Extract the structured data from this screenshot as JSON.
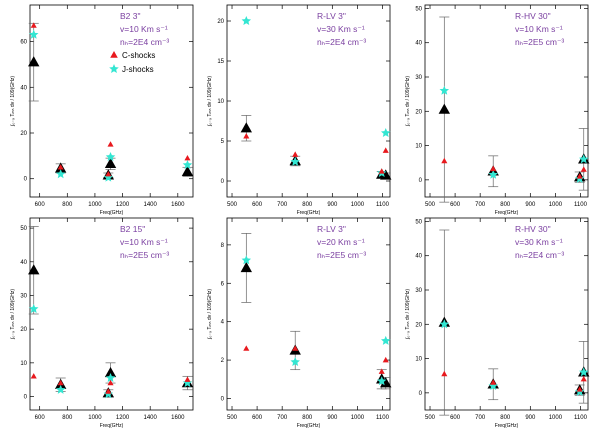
{
  "figure": {
    "colors": {
      "obs": "#000000",
      "cshock": "#e8191e",
      "jshock": "#33e6d2",
      "label": "#7a3fa0",
      "axis": "#000000"
    }
  },
  "legend": {
    "c_label": "C-shocks",
    "j_label": "J-shocks"
  },
  "chart_data": [
    {
      "type": "scatter",
      "id": "B2-3",
      "annotation": [
        "B2 3\"",
        "v=10 Km s⁻¹",
        "nₕ=2E4 cm⁻³"
      ],
      "xlabel": "Freq(GHz)",
      "ylabel": "∫₀₋₉ Tₘₕ dv / 109(GHz)",
      "xlim": [
        530,
        1710
      ],
      "ylim": [
        -8,
        76
      ],
      "xticks": [
        600,
        800,
        1000,
        1200,
        1400,
        1600
      ],
      "yticks": [
        0,
        20,
        40,
        60
      ],
      "show_legend": true,
      "observed": [
        {
          "x": 557,
          "y": 51,
          "err": 17
        },
        {
          "x": 752,
          "y": 4.5,
          "err": 2
        },
        {
          "x": 1097,
          "y": 1.5,
          "err": 1
        },
        {
          "x": 1113,
          "y": 6.5,
          "err": 2.5
        },
        {
          "x": 1670,
          "y": 3,
          "err": 2
        }
      ],
      "c_shocks": [
        {
          "x": 557,
          "y": 67
        },
        {
          "x": 752,
          "y": 5
        },
        {
          "x": 1097,
          "y": 2
        },
        {
          "x": 1113,
          "y": 15
        },
        {
          "x": 1670,
          "y": 9
        }
      ],
      "j_shocks": [
        {
          "x": 557,
          "y": 63
        },
        {
          "x": 752,
          "y": 2
        },
        {
          "x": 1097,
          "y": 0.5
        },
        {
          "x": 1113,
          "y": 9.5
        },
        {
          "x": 1670,
          "y": 6
        }
      ]
    },
    {
      "type": "scatter",
      "id": "R-LV-3a",
      "annotation": [
        "R-LV 3\"",
        "v=30 Km s⁻¹",
        "nₕ=2E4 cm⁻³"
      ],
      "xlabel": "Freq(GHz)",
      "ylabel": "∫₀₋₉ Tₘₕ dv / 109(GHz)",
      "xlim": [
        480,
        1130
      ],
      "ylim": [
        -2,
        22
      ],
      "xticks": [
        500,
        600,
        700,
        800,
        900,
        1000,
        1100
      ],
      "yticks": [
        0,
        5,
        10,
        15,
        20
      ],
      "show_legend": false,
      "observed": [
        {
          "x": 557,
          "y": 6.6,
          "err": 1.6
        },
        {
          "x": 752,
          "y": 2.5,
          "err": 0.6
        },
        {
          "x": 1097,
          "y": 0.8,
          "err": 0.4
        },
        {
          "x": 1113,
          "y": 0.7,
          "err": 0.3
        }
      ],
      "c_shocks": [
        {
          "x": 557,
          "y": 5.6
        },
        {
          "x": 752,
          "y": 3.3
        },
        {
          "x": 1097,
          "y": 1.2
        },
        {
          "x": 1113,
          "y": 3.8
        }
      ],
      "j_shocks": [
        {
          "x": 557,
          "y": 20
        },
        {
          "x": 752,
          "y": 2.4
        },
        {
          "x": 1097,
          "y": 1.0
        },
        {
          "x": 1113,
          "y": 6.0
        }
      ]
    },
    {
      "type": "scatter",
      "id": "R-HV-30a",
      "annotation": [
        "R-HV 30\"",
        "v=10 Km s⁻¹",
        "nₕ=2E5 cm⁻³"
      ],
      "xlabel": "Freq(GHz)",
      "ylabel": "∫₀₋₉ Tₘₕ dv / 109(GHz)",
      "xlim": [
        480,
        1130
      ],
      "ylim": [
        -5,
        51
      ],
      "xticks": [
        500,
        600,
        700,
        800,
        900,
        1000,
        1100
      ],
      "yticks": [
        0,
        10,
        20,
        30,
        40,
        50
      ],
      "show_legend": false,
      "observed": [
        {
          "x": 557,
          "y": 20.5,
          "err": 27
        },
        {
          "x": 752,
          "y": 2.5,
          "err": 4.5
        },
        {
          "x": 1097,
          "y": 0.8,
          "err": 1.5
        },
        {
          "x": 1113,
          "y": 6,
          "err": 9
        }
      ],
      "c_shocks": [
        {
          "x": 557,
          "y": 5.5
        },
        {
          "x": 752,
          "y": 3.2
        },
        {
          "x": 1097,
          "y": 1.0
        },
        {
          "x": 1113,
          "y": 3.0
        }
      ],
      "j_shocks": [
        {
          "x": 557,
          "y": 26
        },
        {
          "x": 752,
          "y": 1.5
        },
        {
          "x": 1097,
          "y": 0.3
        },
        {
          "x": 1113,
          "y": 6
        }
      ]
    },
    {
      "type": "scatter",
      "id": "B2-15",
      "annotation": [
        "B2 15\"",
        "v=10 Km s⁻¹",
        "nₕ=2E5 cm⁻³"
      ],
      "xlabel": "Freq(GHz)",
      "ylabel": "∫₀₋₉ Tₘₕ dv / 109(GHz)",
      "xlim": [
        530,
        1710
      ],
      "ylim": [
        -4,
        53
      ],
      "xticks": [
        600,
        800,
        1000,
        1200,
        1400,
        1600
      ],
      "yticks": [
        0,
        10,
        20,
        30,
        40,
        50
      ],
      "show_legend": false,
      "observed": [
        {
          "x": 557,
          "y": 37.5,
          "err": 13
        },
        {
          "x": 752,
          "y": 3.5,
          "err": 2
        },
        {
          "x": 1097,
          "y": 1.0,
          "err": 1
        },
        {
          "x": 1113,
          "y": 7,
          "err": 3
        },
        {
          "x": 1670,
          "y": 4,
          "err": 2
        }
      ],
      "c_shocks": [
        {
          "x": 557,
          "y": 6
        },
        {
          "x": 752,
          "y": 4
        },
        {
          "x": 1097,
          "y": 1.5
        },
        {
          "x": 1113,
          "y": 4
        },
        {
          "x": 1670,
          "y": 5
        }
      ],
      "j_shocks": [
        {
          "x": 557,
          "y": 26
        },
        {
          "x": 752,
          "y": 2
        },
        {
          "x": 1097,
          "y": 0.7
        },
        {
          "x": 1113,
          "y": 5.5
        },
        {
          "x": 1670,
          "y": 4
        }
      ]
    },
    {
      "type": "scatter",
      "id": "R-LV-3b",
      "annotation": [
        "R-LV 3\"",
        "v=20 Km s⁻¹",
        "nₕ=2E5 cm⁻³"
      ],
      "xlabel": "Freq(GHz)",
      "ylabel": "∫₀₋₉ Tₘₕ dv / 109(GHz)",
      "xlim": [
        480,
        1130
      ],
      "ylim": [
        -0.6,
        9.4
      ],
      "xticks": [
        500,
        600,
        700,
        800,
        900,
        1000,
        1100
      ],
      "yticks": [
        0,
        2,
        4,
        6,
        8
      ],
      "show_legend": false,
      "observed": [
        {
          "x": 557,
          "y": 6.8,
          "err": 1.8
        },
        {
          "x": 752,
          "y": 2.5,
          "err": 1.0
        },
        {
          "x": 1097,
          "y": 1.0,
          "err": 0.5
        },
        {
          "x": 1113,
          "y": 0.8,
          "err": 0.3
        }
      ],
      "c_shocks": [
        {
          "x": 557,
          "y": 2.6
        },
        {
          "x": 752,
          "y": 2.6
        },
        {
          "x": 1097,
          "y": 1.4
        },
        {
          "x": 1113,
          "y": 2.0
        }
      ],
      "j_shocks": [
        {
          "x": 557,
          "y": 7.2
        },
        {
          "x": 752,
          "y": 1.9
        },
        {
          "x": 1097,
          "y": 0.9
        },
        {
          "x": 1113,
          "y": 3.0
        }
      ]
    },
    {
      "type": "scatter",
      "id": "R-HV-30b",
      "annotation": [
        "R-HV 30\"",
        "v=30 Km s⁻¹",
        "nₕ=2E4 cm⁻³"
      ],
      "xlabel": "Freq(GHz)",
      "ylabel": "∫₀₋₉ Tₘₕ dv / 109(GHz)",
      "xlim": [
        480,
        1130
      ],
      "ylim": [
        -5,
        51
      ],
      "xticks": [
        500,
        600,
        700,
        800,
        900,
        1000,
        1100
      ],
      "yticks": [
        0,
        10,
        20,
        30,
        40,
        50
      ],
      "show_legend": false,
      "observed": [
        {
          "x": 557,
          "y": 20.5,
          "err": 27
        },
        {
          "x": 752,
          "y": 2.5,
          "err": 4.5
        },
        {
          "x": 1097,
          "y": 0.8,
          "err": 1.5
        },
        {
          "x": 1113,
          "y": 6,
          "err": 9
        }
      ],
      "c_shocks": [
        {
          "x": 557,
          "y": 5.5
        },
        {
          "x": 752,
          "y": 3
        },
        {
          "x": 1097,
          "y": 1.0
        },
        {
          "x": 1113,
          "y": 4
        }
      ],
      "j_shocks": [
        {
          "x": 557,
          "y": 20
        },
        {
          "x": 752,
          "y": 2
        },
        {
          "x": 1097,
          "y": 0.3
        },
        {
          "x": 1113,
          "y": 6
        }
      ]
    }
  ]
}
